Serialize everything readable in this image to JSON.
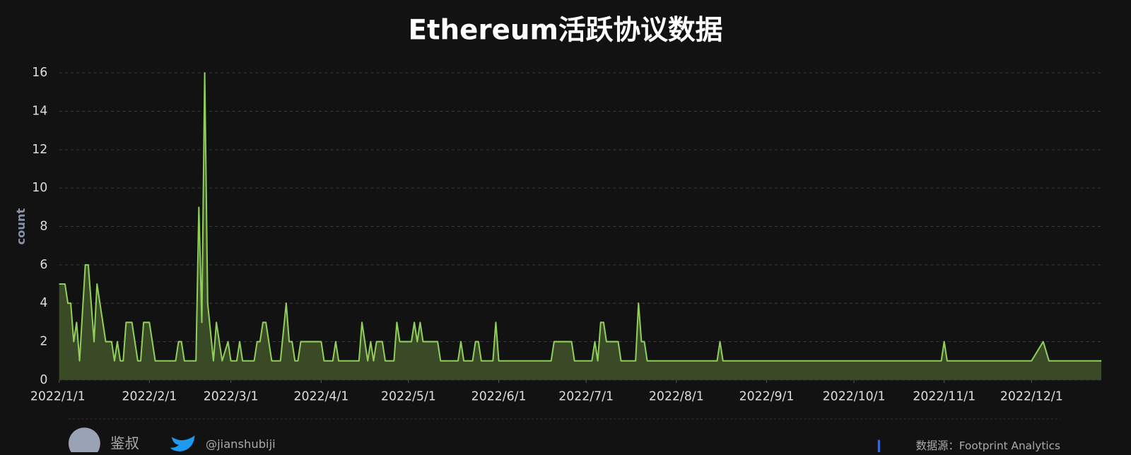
{
  "chart_data": {
    "type": "area",
    "title": "Ethereum活跃协议数据",
    "y_label": "count",
    "x": [
      "2022/1/1",
      "2022/1/3",
      "2022/1/4",
      "2022/1/5",
      "2022/1/6",
      "2022/1/7",
      "2022/1/8",
      "2022/1/10",
      "2022/1/11",
      "2022/1/13",
      "2022/1/14",
      "2022/1/17",
      "2022/1/19",
      "2022/1/20",
      "2022/1/21",
      "2022/1/22",
      "2022/1/23",
      "2022/1/24",
      "2022/1/26",
      "2022/1/28",
      "2022/1/29",
      "2022/1/30",
      "2022/2/1",
      "2022/2/3",
      "2022/2/10",
      "2022/2/11",
      "2022/2/12",
      "2022/2/13",
      "2022/2/17",
      "2022/2/18",
      "2022/2/19",
      "2022/2/20",
      "2022/2/21",
      "2022/2/23",
      "2022/2/24",
      "2022/2/26",
      "2022/2/28",
      "2022/3/1",
      "2022/3/3",
      "2022/3/4",
      "2022/3/5",
      "2022/3/9",
      "2022/3/10",
      "2022/3/11",
      "2022/3/12",
      "2022/3/13",
      "2022/3/15",
      "2022/3/18",
      "2022/3/20",
      "2022/3/21",
      "2022/3/22",
      "2022/3/23",
      "2022/3/24",
      "2022/3/25",
      "2022/4/1",
      "2022/4/2",
      "2022/4/5",
      "2022/4/6",
      "2022/4/7",
      "2022/4/14",
      "2022/4/15",
      "2022/4/16",
      "2022/4/17",
      "2022/4/18",
      "2022/4/19",
      "2022/4/20",
      "2022/4/22",
      "2022/4/23",
      "2022/4/26",
      "2022/4/27",
      "2022/4/28",
      "2022/5/2",
      "2022/5/3",
      "2022/5/4",
      "2022/5/5",
      "2022/5/6",
      "2022/5/11",
      "2022/5/12",
      "2022/5/18",
      "2022/5/19",
      "2022/5/20",
      "2022/5/23",
      "2022/5/24",
      "2022/5/25",
      "2022/5/26",
      "2022/5/30",
      "2022/5/31",
      "2022/6/1",
      "2022/6/19",
      "2022/6/20",
      "2022/6/26",
      "2022/6/27",
      "2022/7/3",
      "2022/7/4",
      "2022/7/5",
      "2022/7/6",
      "2022/7/7",
      "2022/7/8",
      "2022/7/12",
      "2022/7/13",
      "2022/7/18",
      "2022/7/19",
      "2022/7/20",
      "2022/7/21",
      "2022/7/22",
      "2022/8/15",
      "2022/8/16",
      "2022/8/17",
      "2022/10/31",
      "2022/11/1",
      "2022/11/2",
      "2022/12/1",
      "2022/12/5",
      "2022/12/7",
      "2022/12/25"
    ],
    "series": [
      {
        "name": "count",
        "color": "#8fce5a",
        "fill": "#3a4a27",
        "values": [
          5,
          5,
          4,
          4,
          2,
          3,
          1,
          6,
          6,
          2,
          5,
          2,
          2,
          1,
          2,
          1,
          1,
          3,
          3,
          1,
          1,
          3,
          3,
          1,
          1,
          2,
          2,
          1,
          1,
          9,
          3,
          16,
          4,
          1,
          3,
          1,
          2,
          1,
          1,
          2,
          1,
          1,
          2,
          2,
          3,
          3,
          1,
          1,
          4,
          2,
          2,
          1,
          1,
          2,
          2,
          1,
          1,
          2,
          1,
          1,
          3,
          2,
          1,
          2,
          1,
          2,
          2,
          1,
          1,
          3,
          2,
          2,
          3,
          2,
          3,
          2,
          2,
          1,
          1,
          2,
          1,
          1,
          2,
          2,
          1,
          1,
          3,
          1,
          1,
          2,
          2,
          1,
          1,
          2,
          1,
          3,
          3,
          2,
          2,
          1,
          1,
          4,
          2,
          2,
          1,
          1,
          2,
          1,
          1,
          2,
          1,
          1,
          2,
          1,
          1
        ]
      }
    ],
    "xlim": [
      "2022/1/1",
      "2022/12/25"
    ],
    "xticks": [
      "2022/1/1",
      "2022/2/1",
      "2022/3/1",
      "2022/4/1",
      "2022/5/1",
      "2022/6/1",
      "2022/7/1",
      "2022/8/1",
      "2022/9/1",
      "2022/10/1",
      "2022/11/1",
      "2022/12/1"
    ],
    "ylim": [
      0,
      16
    ],
    "yticks": [
      0,
      2,
      4,
      6,
      8,
      10,
      12,
      14,
      16
    ],
    "grid": true
  },
  "footer": {
    "author": "鉴叔",
    "handle": "@jianshubiji",
    "source": "数据源：Footprint  Analytics"
  }
}
